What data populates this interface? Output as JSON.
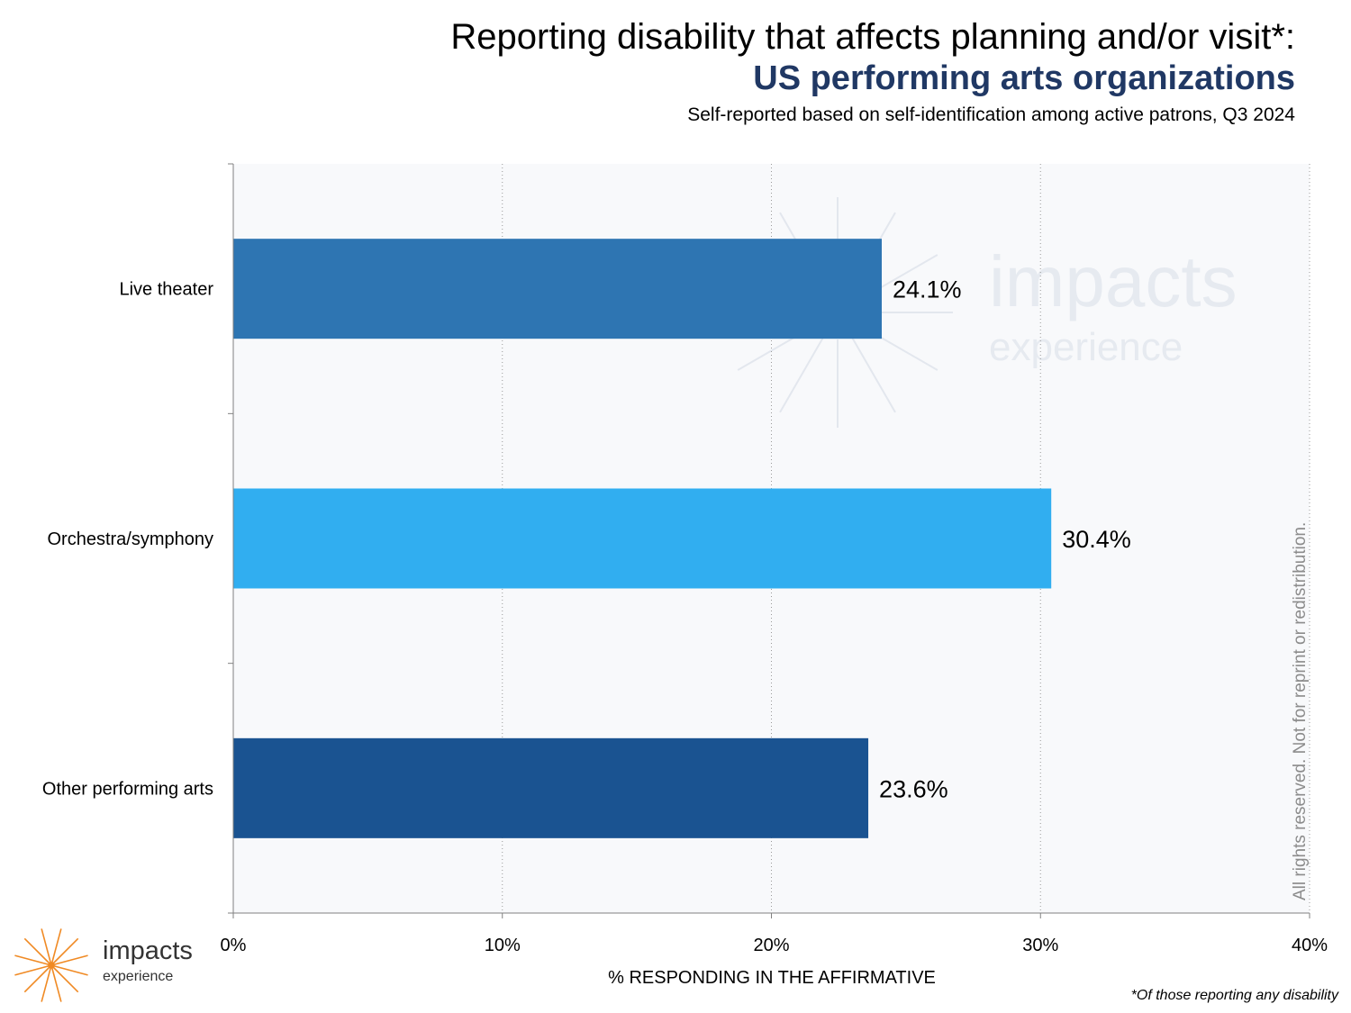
{
  "header": {
    "title": "Reporting disability that affects planning and/or visit*:",
    "subtitle": "US performing arts organizations",
    "caption": "Self-reported based on self-identification among active patrons, Q3 2024"
  },
  "chart_data": {
    "type": "bar",
    "orientation": "horizontal",
    "categories": [
      "Live theater",
      "Orchestra/symphony",
      "Other performing arts"
    ],
    "values": [
      24.1,
      30.4,
      23.6
    ],
    "data_labels": [
      "24.1%",
      "30.4%",
      "23.6%"
    ],
    "bar_colors": [
      "#2E75B2",
      "#31AEF0",
      "#1A5391"
    ],
    "xlabel": "% RESPONDING IN THE AFFIRMATIVE",
    "xlim": [
      0,
      40
    ],
    "x_ticks": [
      0,
      10,
      20,
      30,
      40
    ],
    "x_tick_labels": [
      "0%",
      "10%",
      "20%",
      "30%",
      "40%"
    ],
    "grid": "vertical dotted",
    "plot_background": "#F8F9FB"
  },
  "watermark": {
    "word": "impacts",
    "sub": "experience"
  },
  "copyright": "All rights reserved. Not for reprint or redistribution.",
  "footnote": "*Of those reporting any disability",
  "logo": {
    "word": "impacts",
    "sub": "experience",
    "color": "#F08A24"
  }
}
